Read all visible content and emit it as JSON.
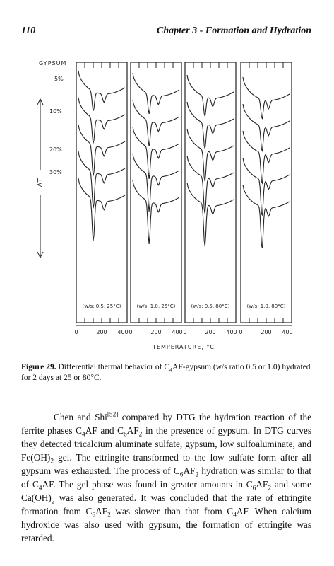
{
  "header": {
    "page_number": "110",
    "running_title": "Chapter 3 - Formation and Hydration"
  },
  "figure": {
    "gypsum_label": "GYPSUM",
    "gypsum_levels": [
      "5%",
      "10%",
      "20%",
      "30%"
    ],
    "y_axis_label": "ΔT",
    "panels": [
      "(w/s: 0.5, 25°C)",
      "(w/s: 1.0, 25°C)",
      "(w/s: 0.5, 80°C)",
      "(w/s: 1.0, 80°C)"
    ],
    "x_ticks": [
      "0",
      "200",
      "400"
    ],
    "x_axis_label": "TEMPERATURE, °C"
  },
  "caption": {
    "label": "Figure 29.",
    "runs": [
      {
        "text": " Differential thermal behavior of C"
      },
      {
        "text": "4",
        "style": "sub"
      },
      {
        "text": "AF-gypsum (w/s ratio 0.5 or 1.0) hydrated for 2 days at 25 or 80°C."
      }
    ]
  },
  "paragraph": {
    "runs": [
      {
        "text": "Chen and Shi"
      },
      {
        "text": "[52]",
        "style": "sup"
      },
      {
        "text": " compared by DTG the hydration reaction of the ferrite phases C"
      },
      {
        "text": "4",
        "style": "sub"
      },
      {
        "text": "AF and C"
      },
      {
        "text": "6",
        "style": "sub"
      },
      {
        "text": "AF"
      },
      {
        "text": "2",
        "style": "sub"
      },
      {
        "text": " in the presence of gypsum. In DTG curves they detected tricalcium aluminate sulfate, gypsum, low sulfoaluminate, and Fe(OH)"
      },
      {
        "text": "2",
        "style": "sub"
      },
      {
        "text": " gel. The ettringite transformed to the low sulfate form after all gypsum was exhausted. The process of C"
      },
      {
        "text": "6",
        "style": "sub"
      },
      {
        "text": "AF"
      },
      {
        "text": "2",
        "style": "sub"
      },
      {
        "text": " hydration was similar to that of C"
      },
      {
        "text": "4",
        "style": "sub"
      },
      {
        "text": "AF. The gel phase was found in greater amounts in C"
      },
      {
        "text": "6",
        "style": "sub"
      },
      {
        "text": "AF"
      },
      {
        "text": "2",
        "style": "sub"
      },
      {
        "text": " and some Ca(OH)"
      },
      {
        "text": "2",
        "style": "sub"
      },
      {
        "text": " was also generated. It was concluded that the rate of ettringite formation from C"
      },
      {
        "text": "6",
        "style": "sub"
      },
      {
        "text": "AF"
      },
      {
        "text": "2",
        "style": "sub"
      },
      {
        "text": " was slower than that from C"
      },
      {
        "text": "4",
        "style": "sub"
      },
      {
        "text": "AF. When calcium hydroxide was also used with gypsum, the formation of ettringite was retarded."
      }
    ]
  }
}
